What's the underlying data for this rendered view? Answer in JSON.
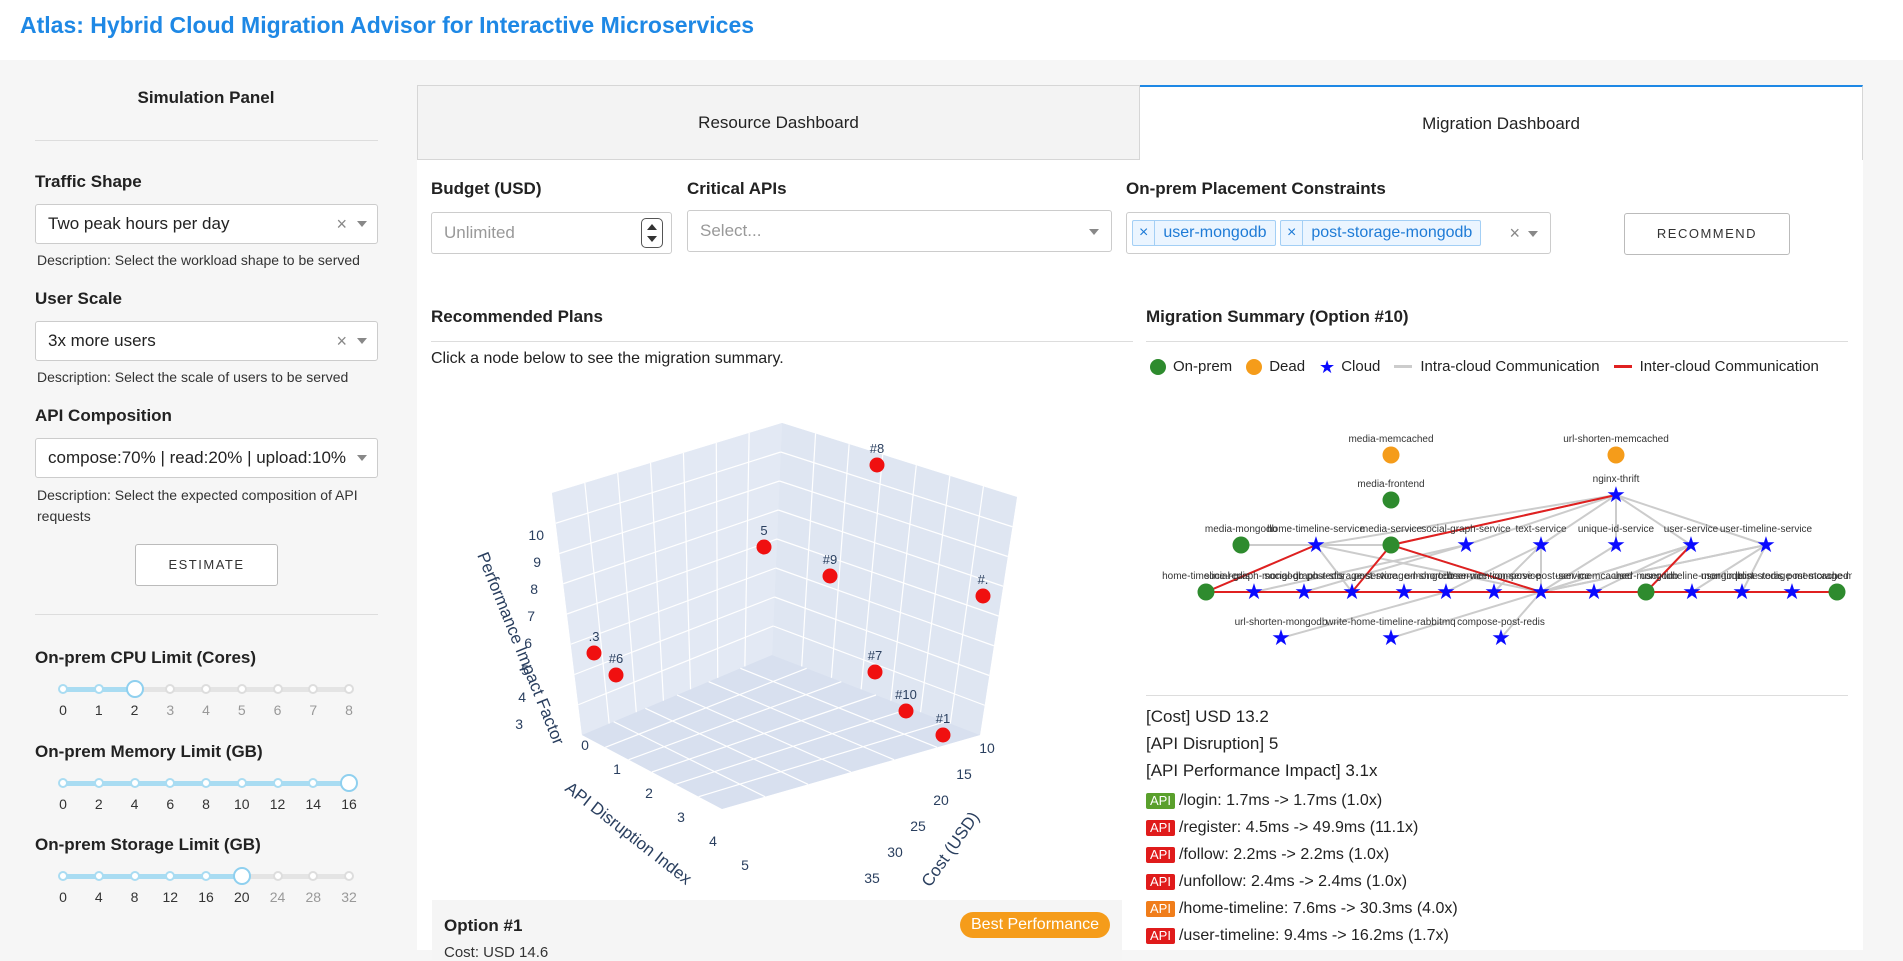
{
  "app": {
    "title": "Atlas: Hybrid Cloud Migration Advisor for Interactive Microservices"
  },
  "sidebar": {
    "title": "Simulation Panel",
    "traffic_shape": {
      "label": "Traffic Shape",
      "value": "Two peak hours per day",
      "description": "Description: Select the workload shape to be served"
    },
    "user_scale": {
      "label": "User Scale",
      "value": "3x more users",
      "description": "Description: Select the scale of users to be served"
    },
    "api_composition": {
      "label": "API Composition",
      "value": "compose:70% | read:20% | upload:10%",
      "description": "Description: Select the expected composition of API requests"
    },
    "estimate_label": "ESTIMATE",
    "cpu": {
      "label": "On-prem CPU Limit (Cores)",
      "ticks": [
        "0",
        "1",
        "2",
        "3",
        "4",
        "5",
        "6",
        "7",
        "8"
      ],
      "value": 2,
      "max": 8
    },
    "memory": {
      "label": "On-prem Memory Limit (GB)",
      "ticks": [
        "0",
        "2",
        "4",
        "6",
        "8",
        "10",
        "12",
        "14",
        "16"
      ],
      "value": 16,
      "max": 16
    },
    "storage": {
      "label": "On-prem Storage Limit (GB)",
      "ticks": [
        "0",
        "4",
        "8",
        "12",
        "16",
        "20",
        "24",
        "28",
        "32"
      ],
      "value": 20,
      "max": 32
    }
  },
  "tabs": {
    "resource": "Resource Dashboard",
    "migration": "Migration Dashboard"
  },
  "controls": {
    "budget_label": "Budget (USD)",
    "budget_placeholder": "Unlimited",
    "critical_label": "Critical APIs",
    "critical_placeholder": "Select...",
    "constraints_label": "On-prem Placement Constraints",
    "constraints": [
      "user-mongodb",
      "post-storage-mongodb"
    ],
    "recommend_label": "RECOMMEND"
  },
  "plans": {
    "title": "Recommended Plans",
    "hint": "Click a node below to see the migration summary.",
    "option_title": "Option #1",
    "option_badge": "Best Performance",
    "option_cost": "Cost: USD 14.6"
  },
  "chart_data": {
    "type": "scatter3d",
    "axes": {
      "x": "Cost (USD)",
      "y": "API Disruption Index",
      "z": "Performance Impact Factor"
    },
    "x_ticks": [
      "10",
      "15",
      "20",
      "25",
      "30",
      "35"
    ],
    "y_ticks": [
      "0",
      "1",
      "2",
      "3",
      "4",
      "5"
    ],
    "z_ticks": [
      "3",
      "4",
      "5",
      "6",
      "7",
      "8",
      "9",
      "10"
    ],
    "point_labels": [
      "#8",
      "5",
      "#9",
      "#.",
      ".3",
      "#6",
      "#7",
      "#10",
      "#1"
    ]
  },
  "summary": {
    "title": "Migration Summary (Option #10)",
    "legend": {
      "onprem": "On-prem",
      "dead": "Dead",
      "cloud": "Cloud",
      "intra": "Intra-cloud Communication",
      "inter": "Inter-cloud Communication"
    },
    "colors": {
      "onprem": "#2e8b2e",
      "dead": "#f59c1a",
      "cloud": "#0a0aff",
      "intra": "#cccccc",
      "inter": "#e02020"
    },
    "cost": "[Cost] USD 13.2",
    "disruption": "[API Disruption] 5",
    "impact": "[API Performance Impact] 3.1x",
    "apis": [
      {
        "badge": "API",
        "color": "#5aa02c",
        "text": "/login: 1.7ms -> 1.7ms (1.0x)"
      },
      {
        "badge": "API",
        "color": "#e01b1b",
        "text": "/register: 4.5ms -> 49.9ms (11.1x)"
      },
      {
        "badge": "API",
        "color": "#e01b1b",
        "text": "/follow: 2.2ms -> 2.2ms (1.0x)"
      },
      {
        "badge": "API",
        "color": "#e01b1b",
        "text": "/unfollow: 2.4ms -> 2.4ms (1.0x)"
      },
      {
        "badge": "API",
        "color": "#f07d1a",
        "text": "/home-timeline: 7.6ms -> 30.3ms (4.0x)"
      },
      {
        "badge": "API",
        "color": "#e01b1b",
        "text": "/user-timeline: 9.4ms -> 16.2ms (1.7x)"
      }
    ]
  },
  "graph": {
    "nodes": [
      {
        "name": "media-memcached",
        "type": "dead"
      },
      {
        "name": "url-shorten-memcached",
        "type": "dead"
      },
      {
        "name": "media-frontend",
        "type": "onprem"
      },
      {
        "name": "nginx-thrift",
        "type": "cloud"
      },
      {
        "name": "media-mongodb",
        "type": "onprem"
      },
      {
        "name": "home-timeline-service",
        "type": "cloud"
      },
      {
        "name": "media-service",
        "type": "onprem"
      },
      {
        "name": "social-graph-service",
        "type": "cloud"
      },
      {
        "name": "text-service",
        "type": "cloud"
      },
      {
        "name": "unique-id-service",
        "type": "cloud"
      },
      {
        "name": "user-service",
        "type": "cloud"
      },
      {
        "name": "user-timeline-service",
        "type": "cloud"
      },
      {
        "name": "home-timeline-redis",
        "type": "onprem"
      },
      {
        "name": "social-graph-mongodb",
        "type": "cloud"
      },
      {
        "name": "social-graph-redis",
        "type": "cloud"
      },
      {
        "name": "post-storage-service",
        "type": "cloud"
      },
      {
        "name": "post-storage-mongodb-x",
        "type": "cloud"
      },
      {
        "name": "url-shorten-service",
        "type": "cloud"
      },
      {
        "name": "user-mention-service",
        "type": "cloud"
      },
      {
        "name": "compose-post-service",
        "type": "cloud"
      },
      {
        "name": "user-memcached",
        "type": "cloud"
      },
      {
        "name": "user-mongodb",
        "type": "onprem"
      },
      {
        "name": "user-timeline-mongodb",
        "type": "cloud"
      },
      {
        "name": "user-timeline-redis",
        "type": "cloud"
      },
      {
        "name": "post-storage-memcached",
        "type": "cloud"
      },
      {
        "name": "post-storage-mongodb",
        "type": "onprem"
      },
      {
        "name": "url-shorten-mongodb",
        "type": "cloud"
      },
      {
        "name": "write-home-timeline-rabbitmq",
        "type": "cloud"
      },
      {
        "name": "compose-post-redis",
        "type": "cloud"
      }
    ]
  }
}
